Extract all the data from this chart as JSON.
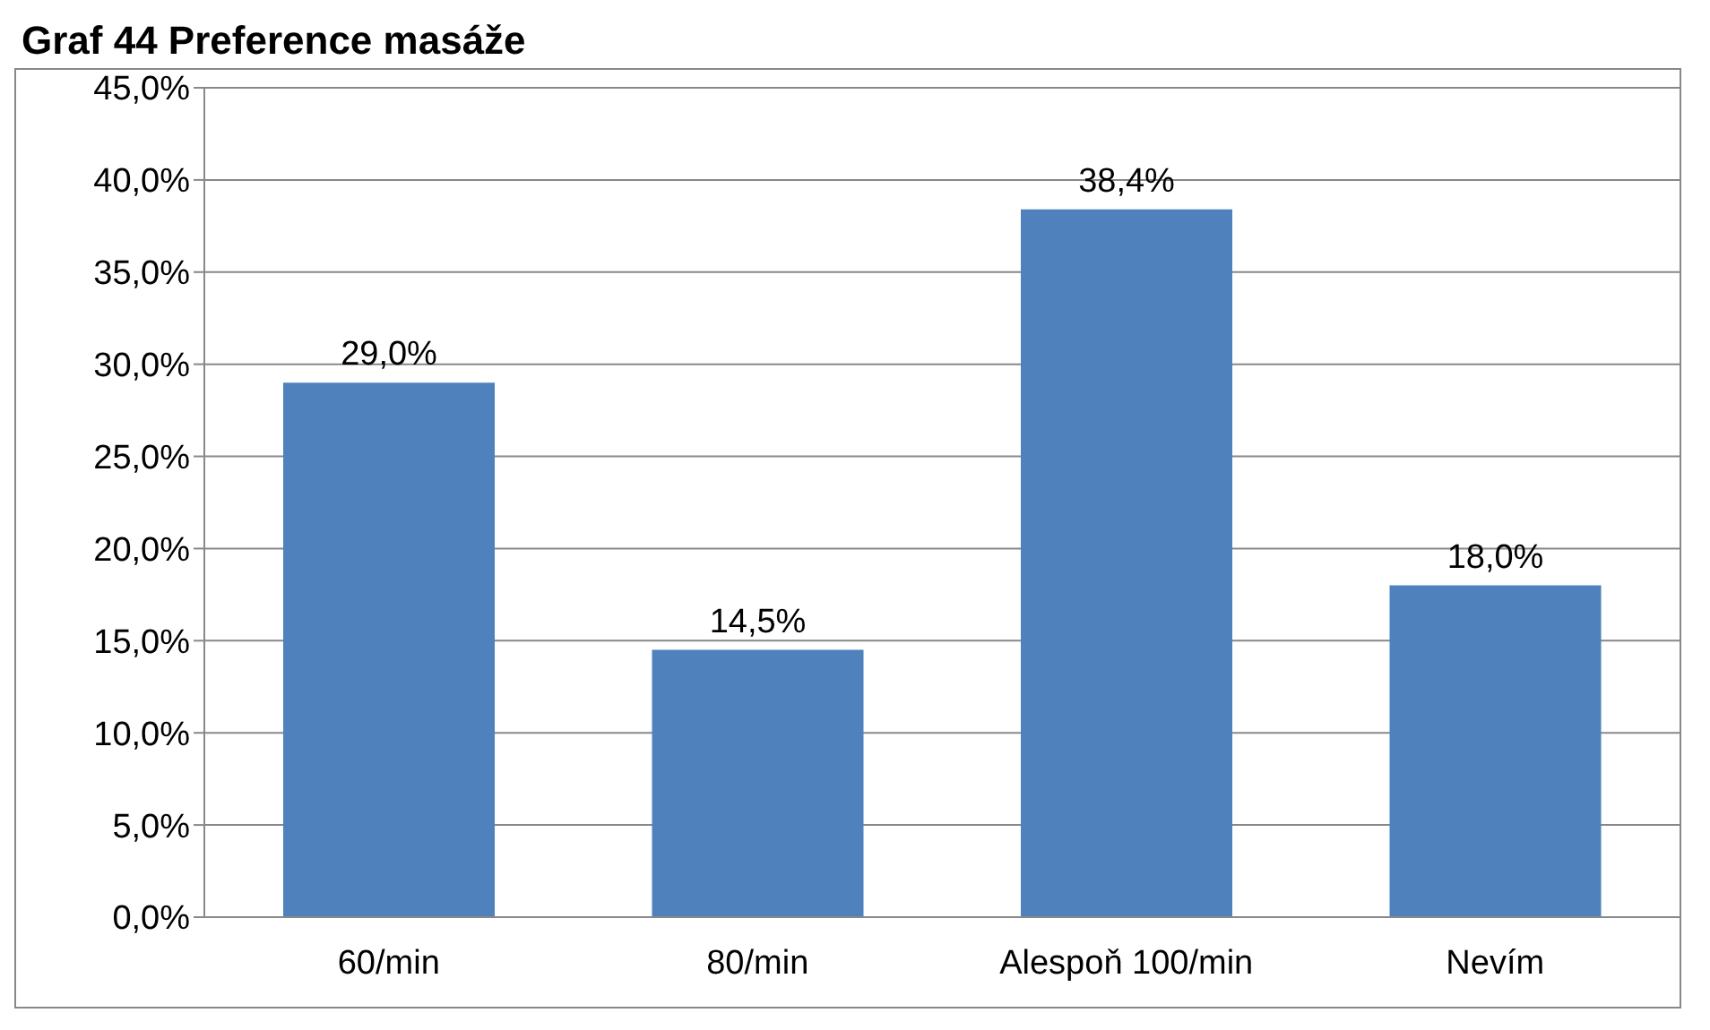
{
  "chart_data": {
    "type": "bar",
    "title": "Graf 44 Preference masáže",
    "categories": [
      "60/min",
      "80/min",
      "Alespoň 100/min",
      "Nevím"
    ],
    "values": [
      29.0,
      14.5,
      38.4,
      18.0
    ],
    "color": "#4f81bd",
    "value_labels": [
      "29,0%",
      "14,5%",
      "38,4%",
      "18,0%"
    ],
    "ylim": [
      0,
      45
    ],
    "yticks": [
      {
        "value": 0,
        "label": "0,0%"
      },
      {
        "value": 5,
        "label": "5,0%"
      },
      {
        "value": 10,
        "label": "10,0%"
      },
      {
        "value": 15,
        "label": "15,0%"
      },
      {
        "value": 20,
        "label": "20,0%"
      },
      {
        "value": 25,
        "label": "25,0%"
      },
      {
        "value": 30,
        "label": "30,0%"
      },
      {
        "value": 35,
        "label": "35,0%"
      },
      {
        "value": 40,
        "label": "40,0%"
      },
      {
        "value": 45,
        "label": "45,0%"
      }
    ],
    "grid": "y"
  }
}
